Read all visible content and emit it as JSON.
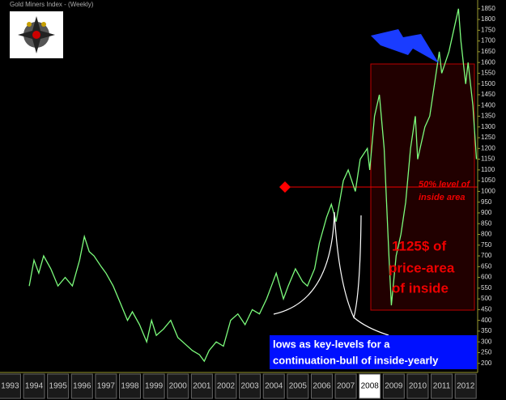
{
  "chart_data": {
    "type": "line",
    "title": "Gold Miners Index - (Weekly)",
    "xlim": [
      1992.75,
      2012.5
    ],
    "ylim": [
      150,
      1870
    ],
    "xticks": [
      1993,
      1994,
      1995,
      1996,
      1997,
      1998,
      1999,
      2000,
      2001,
      2002,
      2003,
      2004,
      2005,
      2006,
      2007,
      2008,
      2009,
      2010,
      2011,
      2012
    ],
    "highlight_xtick": 2008,
    "yticks": [
      200,
      250,
      300,
      350,
      400,
      450,
      500,
      550,
      600,
      650,
      700,
      750,
      800,
      850,
      900,
      950,
      1000,
      1050,
      1100,
      1150,
      1200,
      1250,
      1300,
      1350,
      1400,
      1450,
      1500,
      1550,
      1600,
      1650,
      1700,
      1750,
      1800,
      1850
    ],
    "series": [
      {
        "color": "#7cfc7c",
        "x": [
          1993.8,
          1994.0,
          1994.2,
          1994.4,
          1994.7,
          1995.0,
          1995.3,
          1995.6,
          1995.9,
          1996.1,
          1996.3,
          1996.5,
          1996.8,
          1997.0,
          1997.3,
          1997.6,
          1997.9,
          1998.1,
          1998.4,
          1998.7,
          1998.9,
          1999.1,
          1999.4,
          1999.7,
          2000.0,
          2000.3,
          2000.6,
          2000.9,
          2001.1,
          2001.3,
          2001.6,
          2001.9,
          2002.2,
          2002.5,
          2002.8,
          2003.1,
          2003.4,
          2003.7,
          2003.9,
          2004.1,
          2004.4,
          2004.6,
          2004.9,
          2005.2,
          2005.4,
          2005.7,
          2005.9,
          2006.2,
          2006.4,
          2006.6,
          2006.9,
          2007.1,
          2007.4,
          2007.6,
          2007.9,
          2008.0,
          2008.2,
          2008.4,
          2008.6,
          2008.8,
          2008.9,
          2009.1,
          2009.3,
          2009.5,
          2009.7,
          2009.9,
          2010.0,
          2010.3,
          2010.5,
          2010.7,
          2010.9,
          2011.0,
          2011.3,
          2011.5,
          2011.7,
          2011.8,
          2012.0,
          2012.1,
          2012.3,
          2012.45
        ],
        "values": [
          560,
          680,
          620,
          700,
          640,
          560,
          600,
          560,
          680,
          790,
          720,
          700,
          650,
          620,
          560,
          480,
          400,
          440,
          380,
          300,
          400,
          330,
          360,
          400,
          320,
          290,
          260,
          240,
          210,
          260,
          300,
          280,
          400,
          430,
          380,
          450,
          430,
          500,
          560,
          620,
          500,
          560,
          640,
          580,
          560,
          640,
          760,
          880,
          940,
          860,
          1050,
          1100,
          1000,
          1150,
          1200,
          1100,
          1350,
          1450,
          1200,
          700,
          470,
          700,
          800,
          950,
          1200,
          1350,
          1150,
          1300,
          1350,
          1500,
          1650,
          1550,
          1650,
          1750,
          1850,
          1700,
          1500,
          1600,
          1400,
          1150
        ]
      }
    ],
    "annotations": {
      "level_label": [
        "50% level of",
        "inside area"
      ],
      "area_label": [
        "1125$ of",
        "price-area",
        "of inside"
      ],
      "lows_label": [
        "lows as key-levels for a",
        "continuation-bull of inside-yearly"
      ]
    }
  }
}
